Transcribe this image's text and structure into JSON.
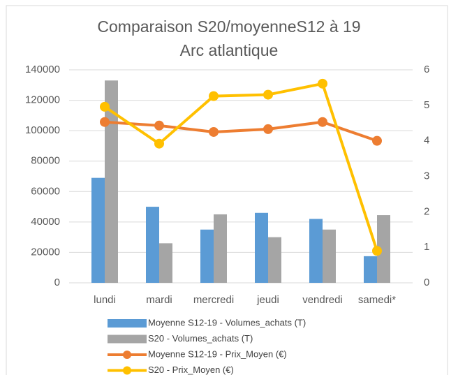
{
  "chart_data": {
    "type": "bar-line",
    "title": [
      "Comparaison S20/moyenneS12 à 19",
      "Arc atlantique"
    ],
    "categories": [
      "lundi",
      "mardi",
      "mercredi",
      "jeudi",
      "vendredi",
      "samedi*"
    ],
    "series": [
      {
        "name": "Moyenne S12-19 - Volumes_achats (T)",
        "color": "#5b9bd5",
        "kind": "bar",
        "values": [
          69000,
          50000,
          35000,
          46000,
          42000,
          17500
        ]
      },
      {
        "name": "S20 - Volumes_achats (T)",
        "color": "#a5a5a5",
        "kind": "bar",
        "values": [
          133000,
          26000,
          45000,
          30000,
          35000,
          44500
        ]
      },
      {
        "name": "Moyenne S12-19 - Prix_Moyen (€)",
        "color": "#ed7d31",
        "kind": "line",
        "axis": "y2",
        "values": [
          4.53,
          4.43,
          4.25,
          4.33,
          4.53,
          4.0
        ]
      },
      {
        "name": "S20 - Prix_Moyen (€)",
        "color": "#ffc000",
        "kind": "line",
        "axis": "y2",
        "values": [
          4.96,
          3.92,
          5.26,
          5.3,
          5.61,
          0.9
        ]
      }
    ],
    "ylim": [
      0,
      140000
    ],
    "yticks": [
      0,
      20000,
      40000,
      60000,
      80000,
      100000,
      120000,
      140000
    ],
    "y2lim": [
      0,
      6
    ],
    "y2ticks": [
      0,
      1,
      2,
      3,
      4,
      5,
      6
    ],
    "grid": true,
    "legend": "bottom"
  }
}
